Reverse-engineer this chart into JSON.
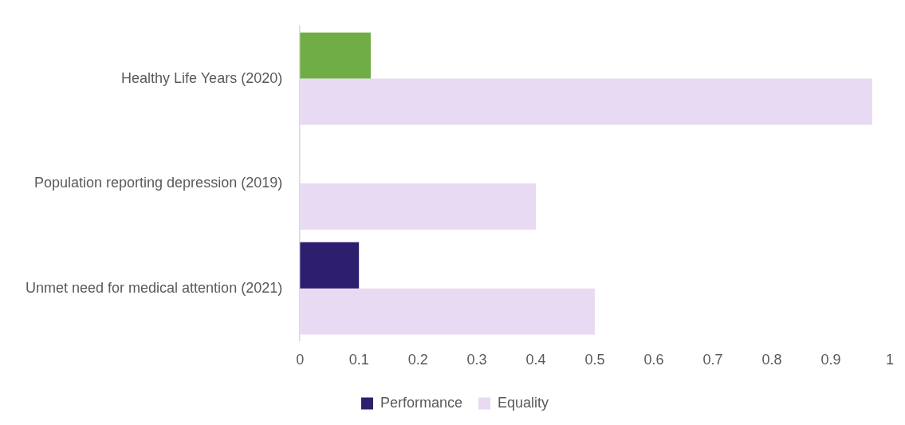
{
  "chart_data": {
    "type": "bar",
    "orientation": "horizontal",
    "categories": [
      "Healthy Life Years (2020)",
      "Population reporting depression (2019)",
      "Unmet need for medical attention (2021)"
    ],
    "series": [
      {
        "name": "Performance",
        "color": "#2e1f6e",
        "colors": [
          "#70ad47",
          null,
          "#2e1f6e"
        ],
        "values": [
          0.12,
          null,
          0.1
        ]
      },
      {
        "name": "Equality",
        "color": "#e8daf2",
        "values": [
          0.97,
          0.4,
          0.5
        ]
      }
    ],
    "xlim": [
      0,
      1
    ],
    "xticks": [
      0,
      0.1,
      0.2,
      0.3,
      0.4,
      0.5,
      0.6,
      0.7,
      0.8,
      0.9,
      1
    ],
    "grid": false,
    "legend": "bottom"
  }
}
